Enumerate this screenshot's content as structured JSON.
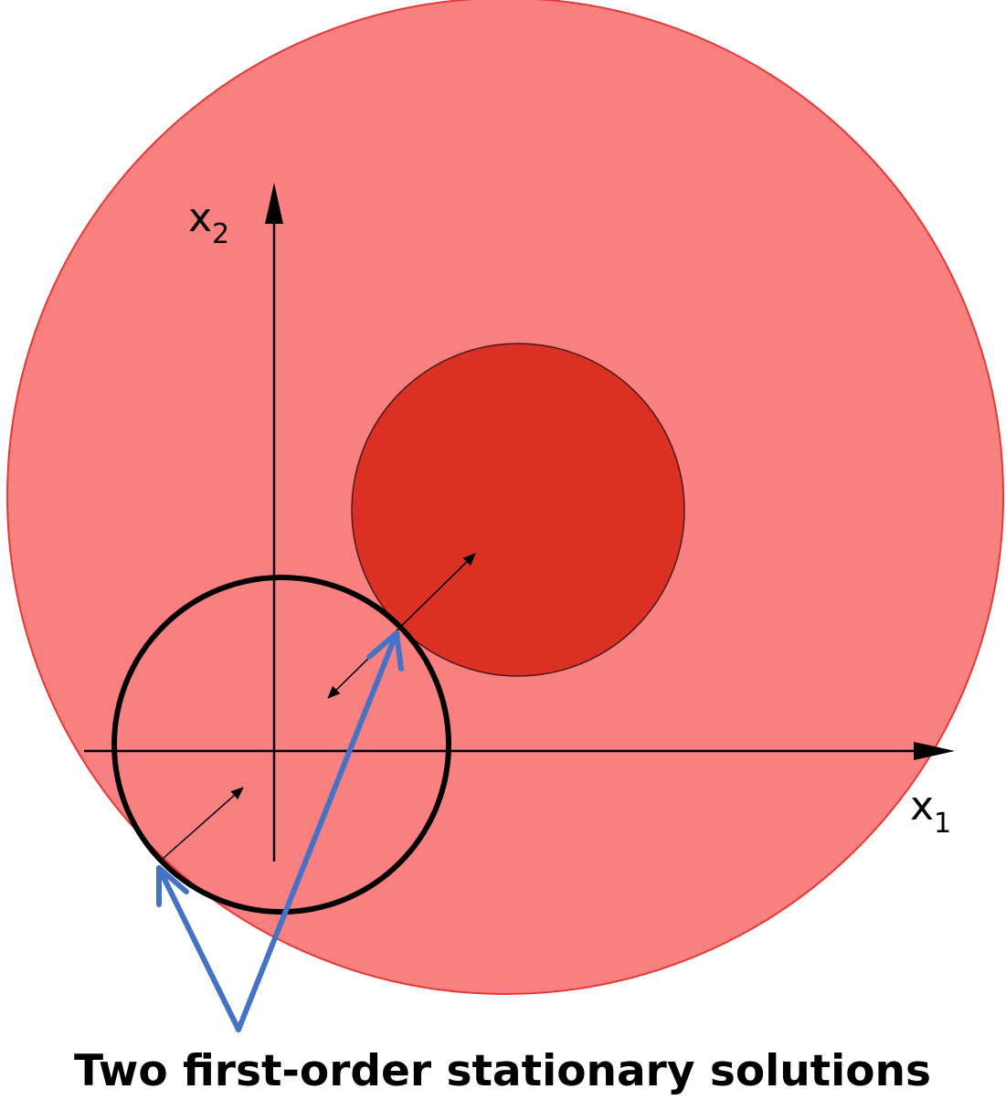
{
  "axes": {
    "x": {
      "symbol": "x",
      "subscript": "1"
    },
    "y": {
      "symbol": "x",
      "subscript": "2"
    }
  },
  "caption": "Two first-order stationary solutions",
  "colors": {
    "outer_region": "#f98080",
    "outer_stroke": "#e53935",
    "inner_region": "#dd3024",
    "contour": "#000000",
    "pointer": "#4472c4"
  },
  "shapes": [
    "outer-disk",
    "inner-disk",
    "level-circle"
  ],
  "annotations": [
    "pointer-arrow-left",
    "pointer-arrow-right"
  ]
}
